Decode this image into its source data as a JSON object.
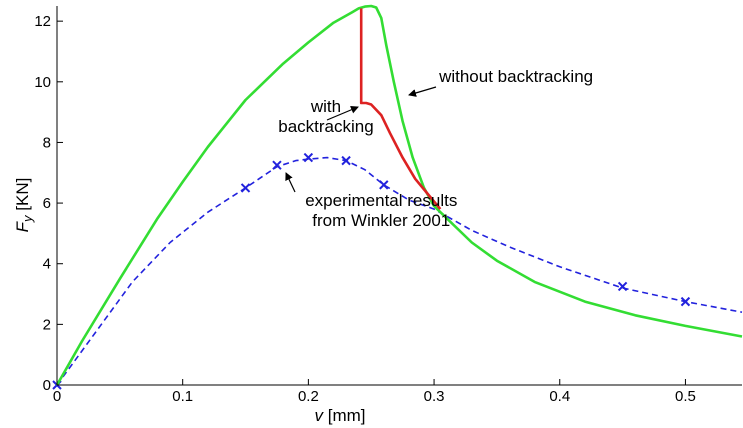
{
  "chart_data": {
    "type": "line",
    "xlabel_symbol": "v",
    "xlabel_unit": " [mm]",
    "ylabel_symbol": "F",
    "ylabel_sub": "y",
    "ylabel_unit": " [KN]",
    "xlim": [
      0,
      0.545
    ],
    "ylim": [
      0,
      12.5
    ],
    "xticks": [
      0,
      0.1,
      0.2,
      0.3,
      0.4,
      0.5
    ],
    "xtick_labels": [
      "0",
      "0.1",
      "0.2",
      "0.3",
      "0.4",
      "0.5"
    ],
    "yticks": [
      0,
      2,
      4,
      6,
      8,
      10,
      12
    ],
    "ytick_labels": [
      "0",
      "2",
      "4",
      "6",
      "8",
      "10",
      "12"
    ],
    "grid": false,
    "series": [
      {
        "name": "without backtracking",
        "color": "#33dd33",
        "style": "solid",
        "points": [
          [
            0,
            0
          ],
          [
            0.02,
            1.45
          ],
          [
            0.05,
            3.5
          ],
          [
            0.08,
            5.5
          ],
          [
            0.1,
            6.7
          ],
          [
            0.12,
            7.85
          ],
          [
            0.15,
            9.4
          ],
          [
            0.18,
            10.6
          ],
          [
            0.2,
            11.3
          ],
          [
            0.22,
            11.95
          ],
          [
            0.235,
            12.3
          ],
          [
            0.24,
            12.42
          ],
          [
            0.245,
            12.48
          ],
          [
            0.25,
            12.5
          ],
          [
            0.254,
            12.45
          ],
          [
            0.258,
            12.1
          ],
          [
            0.262,
            11.2
          ],
          [
            0.268,
            10.0
          ],
          [
            0.275,
            8.7
          ],
          [
            0.283,
            7.5
          ],
          [
            0.292,
            6.5
          ],
          [
            0.3,
            5.9
          ],
          [
            0.31,
            5.5
          ],
          [
            0.33,
            4.7
          ],
          [
            0.35,
            4.1
          ],
          [
            0.38,
            3.4
          ],
          [
            0.42,
            2.75
          ],
          [
            0.46,
            2.3
          ],
          [
            0.5,
            1.95
          ],
          [
            0.545,
            1.6
          ]
        ]
      },
      {
        "name": "with backtracking",
        "color": "#dd2222",
        "style": "solid",
        "points": [
          [
            0.242,
            12.42
          ],
          [
            0.242,
            9.3
          ],
          [
            0.246,
            9.3
          ],
          [
            0.25,
            9.25
          ],
          [
            0.258,
            8.9
          ],
          [
            0.265,
            8.3
          ],
          [
            0.275,
            7.5
          ],
          [
            0.285,
            6.8
          ],
          [
            0.295,
            6.3
          ],
          [
            0.305,
            5.8
          ]
        ]
      },
      {
        "name": "experimental results from Winkler 2001",
        "color": "#2222dd",
        "style": "dashed",
        "points": [
          [
            0,
            0
          ],
          [
            0.03,
            1.7
          ],
          [
            0.06,
            3.4
          ],
          [
            0.09,
            4.7
          ],
          [
            0.12,
            5.7
          ],
          [
            0.15,
            6.5
          ],
          [
            0.175,
            7.2
          ],
          [
            0.19,
            7.4
          ],
          [
            0.2,
            7.45
          ],
          [
            0.215,
            7.5
          ],
          [
            0.23,
            7.4
          ],
          [
            0.245,
            7.1
          ],
          [
            0.26,
            6.6
          ],
          [
            0.28,
            6.1
          ],
          [
            0.3,
            5.8
          ],
          [
            0.33,
            5.1
          ],
          [
            0.36,
            4.55
          ],
          [
            0.4,
            3.9
          ],
          [
            0.45,
            3.2
          ],
          [
            0.5,
            2.75
          ],
          [
            0.545,
            2.4
          ]
        ],
        "markers": [
          [
            0,
            0
          ],
          [
            0.15,
            6.5
          ],
          [
            0.175,
            7.25
          ],
          [
            0.2,
            7.5
          ],
          [
            0.23,
            7.4
          ],
          [
            0.26,
            6.6
          ],
          [
            0.45,
            3.25
          ],
          [
            0.5,
            2.75
          ]
        ]
      }
    ],
    "annotations": [
      {
        "lines": [
          "without backtracking"
        ],
        "anchor": "start",
        "tx": 0.304,
        "ty": 10.0,
        "ax": 0.274,
        "ay": 9.5
      },
      {
        "lines": [
          "with",
          "backtracking"
        ],
        "anchor": "middle",
        "tx": 0.214,
        "ty": 9.0,
        "ax": 0.243,
        "ay": 8.8
      },
      {
        "lines": [
          "experimental results",
          "from Winkler 2001"
        ],
        "anchor": "middle",
        "tx": 0.258,
        "ty": 5.9,
        "ax": 0.183,
        "ay": 7.0
      }
    ]
  }
}
